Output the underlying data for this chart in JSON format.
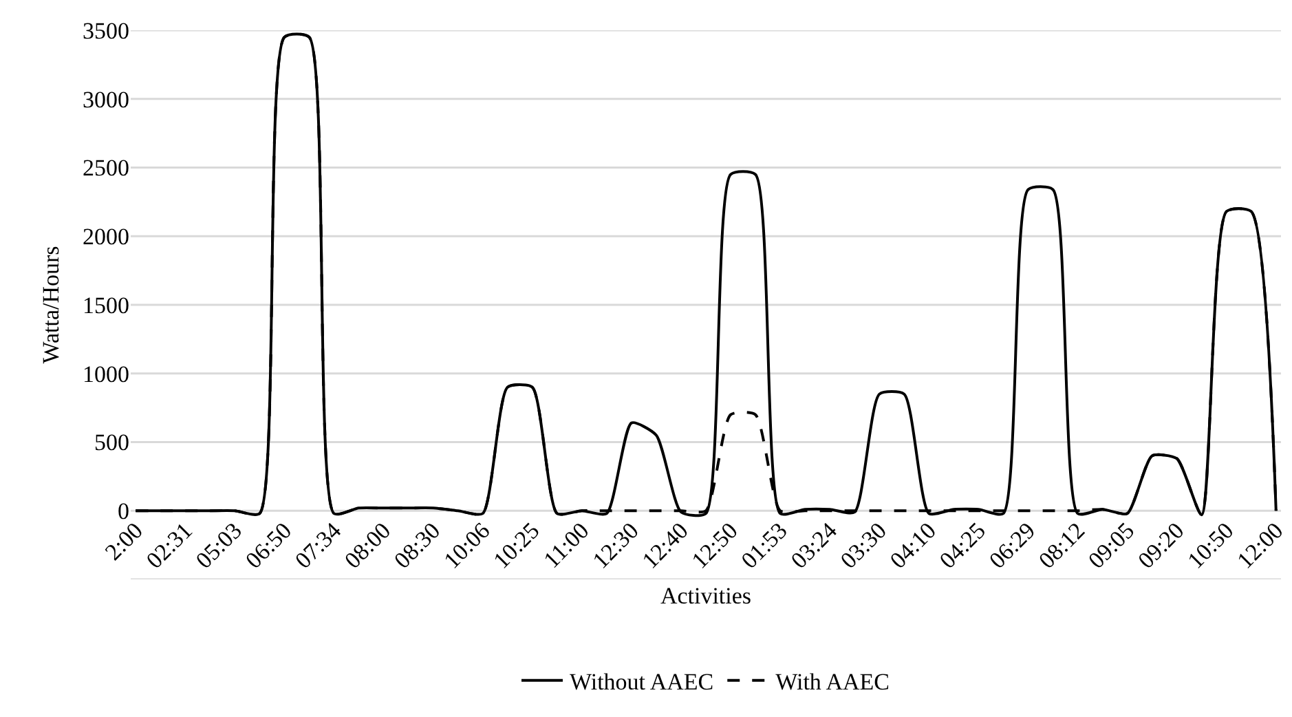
{
  "chart_data": {
    "type": "line",
    "xlabel": "Activities",
    "ylabel": "Watta/Hours",
    "categories": [
      "2:00",
      null,
      "02:31",
      null,
      "05:03",
      null,
      "06:50",
      null,
      "07:34",
      null,
      "08:00",
      null,
      "08:30",
      null,
      "10:06",
      null,
      "10:25",
      null,
      "11:00",
      null,
      "12:30",
      null,
      "12:40",
      null,
      "12:50",
      null,
      "01:53",
      null,
      "03:24",
      null,
      "03:30",
      null,
      "04:10",
      null,
      "04:25",
      null,
      "06:29",
      null,
      "08:12",
      null,
      "09:05",
      null,
      "09:20",
      null,
      "10:50",
      null,
      "12:00"
    ],
    "series": [
      {
        "name": "Without AAEC",
        "color": "#000000",
        "line_style": "solid",
        "values": [
          0,
          0,
          0,
          0,
          0,
          -20,
          3450,
          3450,
          -20,
          20,
          20,
          20,
          20,
          0,
          -20,
          900,
          900,
          -20,
          0,
          -20,
          640,
          550,
          -10,
          -20,
          2450,
          2450,
          -20,
          10,
          10,
          -10,
          850,
          850,
          -20,
          10,
          10,
          -20,
          2340,
          2340,
          -20,
          10,
          -20,
          400,
          380,
          -30,
          2180,
          2180,
          0
        ]
      },
      {
        "name": "With AAEC",
        "color": "#000000",
        "line_style": "dashed",
        "values": [
          0,
          0,
          0,
          0,
          0,
          -20,
          3450,
          3450,
          -20,
          20,
          20,
          20,
          20,
          0,
          -20,
          900,
          900,
          -20,
          0,
          0,
          0,
          0,
          0,
          0,
          700,
          700,
          0,
          0,
          0,
          0,
          0,
          0,
          0,
          0,
          0,
          0,
          0,
          0,
          0,
          10,
          -20,
          400,
          380,
          -30,
          2180,
          2180,
          0
        ]
      }
    ],
    "ylim": [
      -500,
      3500
    ],
    "yticks": [
      {
        "value": -500,
        "label": null
      },
      0,
      500,
      1000,
      1500,
      2000,
      2500,
      3000,
      3500
    ],
    "grid": "y",
    "legend": "bottom",
    "marker": "none"
  }
}
